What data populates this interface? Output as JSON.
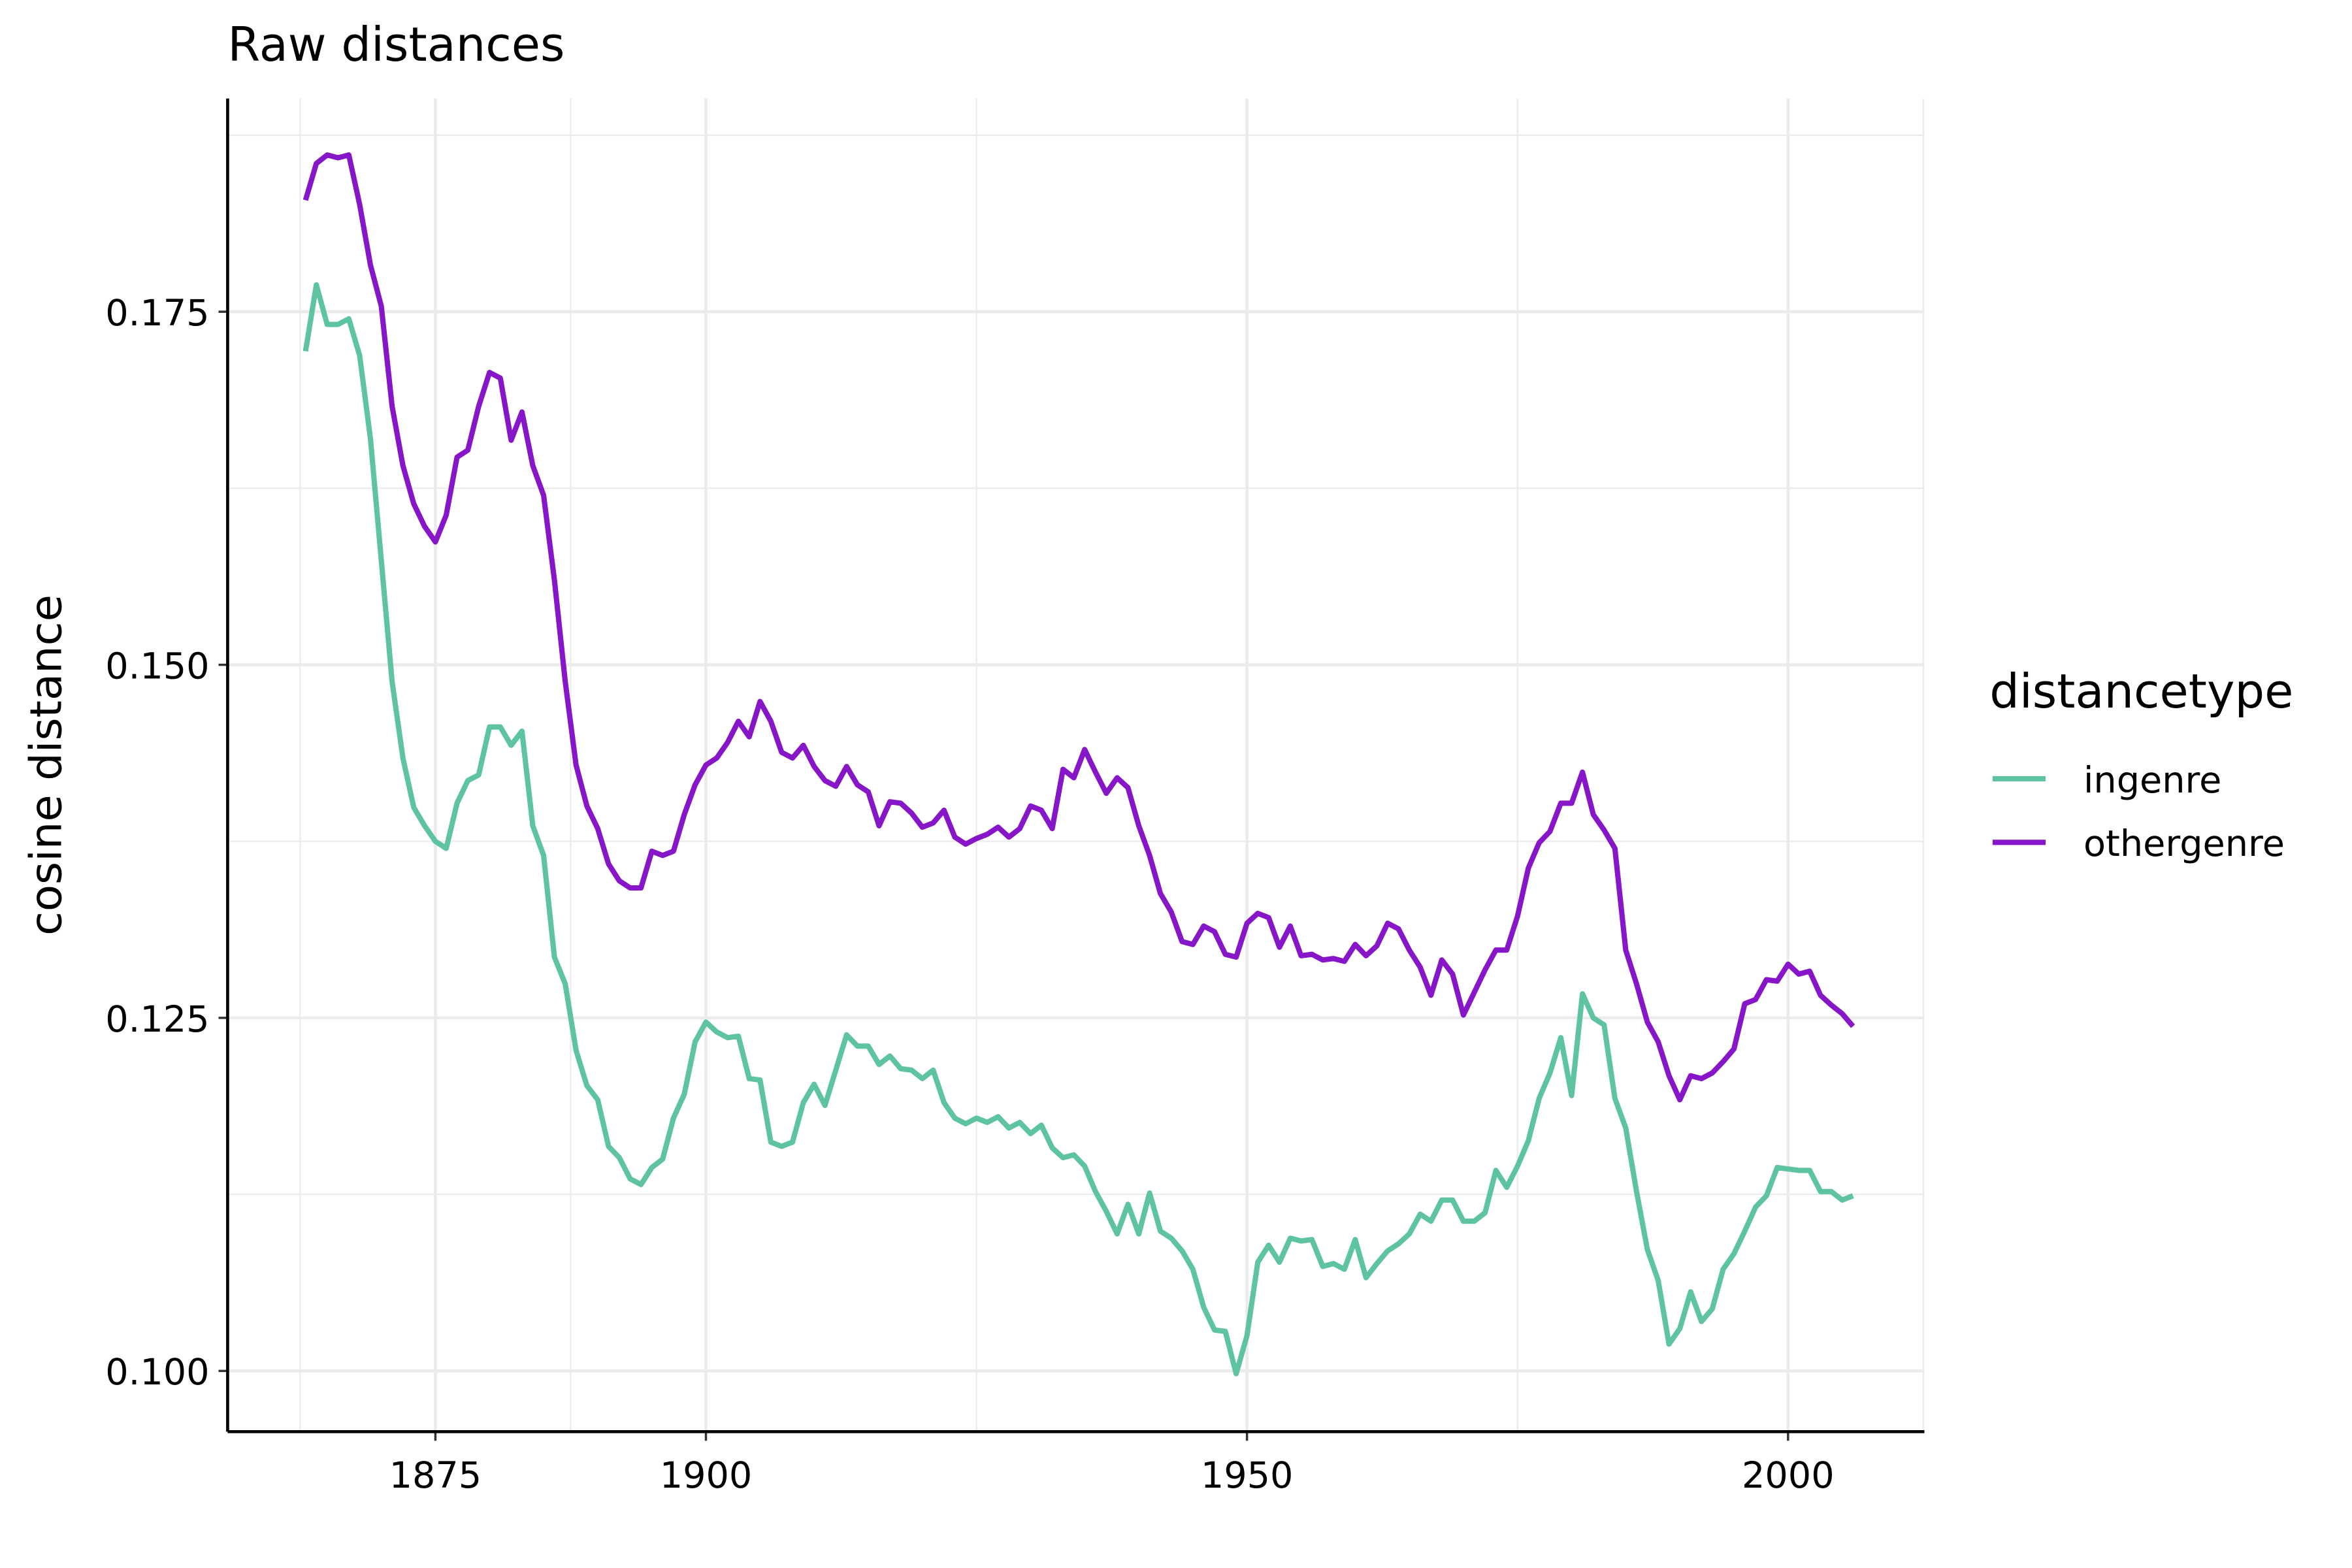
{
  "chart_data": {
    "type": "line",
    "title": "Raw distances",
    "ylabel": "cosine distance",
    "legend_title": "distancetype",
    "legend_position": "right",
    "grid": true,
    "x": [
      1863,
      1864,
      1865,
      1866,
      1867,
      1868,
      1869,
      1870,
      1871,
      1872,
      1873,
      1874,
      1875,
      1876,
      1877,
      1878,
      1879,
      1880,
      1881,
      1882,
      1883,
      1884,
      1885,
      1886,
      1887,
      1888,
      1889,
      1890,
      1891,
      1892,
      1893,
      1894,
      1895,
      1896,
      1897,
      1898,
      1899,
      1900,
      1901,
      1902,
      1903,
      1904,
      1905,
      1906,
      1907,
      1908,
      1909,
      1910,
      1911,
      1912,
      1913,
      1914,
      1915,
      1916,
      1917,
      1918,
      1919,
      1920,
      1921,
      1922,
      1923,
      1924,
      1925,
      1926,
      1927,
      1928,
      1929,
      1930,
      1931,
      1932,
      1933,
      1934,
      1935,
      1936,
      1937,
      1938,
      1939,
      1940,
      1941,
      1942,
      1943,
      1944,
      1945,
      1946,
      1947,
      1948,
      1949,
      1950,
      1951,
      1952,
      1953,
      1954,
      1955,
      1956,
      1957,
      1958,
      1959,
      1960,
      1961,
      1962,
      1963,
      1964,
      1965,
      1966,
      1967,
      1968,
      1969,
      1970,
      1971,
      1972,
      1973,
      1974,
      1975,
      1976,
      1977,
      1978,
      1979,
      1980,
      1981,
      1982,
      1983,
      1984,
      1985,
      1986,
      1987,
      1988,
      1989,
      1990,
      1991,
      1992,
      1993,
      1994,
      1995,
      1996,
      1997,
      1998,
      1999,
      2000,
      2001,
      2002,
      2003,
      2004,
      2005,
      2006
    ],
    "series": [
      {
        "name": "ingenre",
        "color": "#5ec4a0",
        "values": [
          0.1722,
          0.1769,
          0.1741,
          0.1741,
          0.1745,
          0.1719,
          0.166,
          0.1574,
          0.1488,
          0.1434,
          0.1399,
          0.1386,
          0.1375,
          0.137,
          0.1402,
          0.1418,
          0.1422,
          0.1456,
          0.1456,
          0.1443,
          0.1453,
          0.1386,
          0.1365,
          0.1293,
          0.1274,
          0.1227,
          0.1202,
          0.1192,
          0.1159,
          0.1151,
          0.1136,
          0.1132,
          0.1144,
          0.115,
          0.1179,
          0.1196,
          0.1233,
          0.1247,
          0.124,
          0.1236,
          0.1237,
          0.1207,
          0.1206,
          0.1162,
          0.1159,
          0.1162,
          0.119,
          0.1203,
          0.1188,
          0.1213,
          0.1238,
          0.123,
          0.123,
          0.1217,
          0.1223,
          0.1214,
          0.1213,
          0.1207,
          0.1213,
          0.119,
          0.1179,
          0.1175,
          0.1179,
          0.1176,
          0.118,
          0.1172,
          0.1176,
          0.1168,
          0.1174,
          0.1158,
          0.1151,
          0.1153,
          0.1145,
          0.1127,
          0.1113,
          0.1097,
          0.1118,
          0.1097,
          0.1126,
          0.1099,
          0.1094,
          0.1085,
          0.1072,
          0.1045,
          0.1029,
          0.1028,
          0.0998,
          0.1025,
          0.1077,
          0.1089,
          0.1077,
          0.1094,
          0.1092,
          0.1093,
          0.1074,
          0.1076,
          0.1072,
          0.1093,
          0.1066,
          0.1076,
          0.1085,
          0.109,
          0.1097,
          0.1111,
          0.1106,
          0.1121,
          0.1121,
          0.1106,
          0.1106,
          0.1112,
          0.1142,
          0.113,
          0.1145,
          0.1163,
          0.1193,
          0.1211,
          0.1236,
          0.1195,
          0.1267,
          0.125,
          0.1245,
          0.1193,
          0.1172,
          0.1127,
          0.1086,
          0.1064,
          0.1019,
          0.103,
          0.1056,
          0.1035,
          0.1044,
          0.1072,
          0.1083,
          0.1099,
          0.1116,
          0.1124,
          0.1144,
          0.1143,
          0.1142,
          0.1142,
          0.1127,
          0.1127,
          0.1121,
          0.1124
        ]
      },
      {
        "name": "othergenre",
        "color": "#8616c8",
        "values": [
          0.1829,
          0.1855,
          0.1861,
          0.1859,
          0.1861,
          0.1826,
          0.1783,
          0.1754,
          0.1683,
          0.1641,
          0.1614,
          0.1598,
          0.1587,
          0.1606,
          0.1647,
          0.1652,
          0.1683,
          0.1707,
          0.1703,
          0.1659,
          0.1679,
          0.1641,
          0.162,
          0.156,
          0.1488,
          0.1429,
          0.14,
          0.1384,
          0.1359,
          0.1347,
          0.1342,
          0.1342,
          0.1368,
          0.1365,
          0.1368,
          0.1394,
          0.1415,
          0.1429,
          0.1434,
          0.1445,
          0.146,
          0.1449,
          0.1474,
          0.146,
          0.1438,
          0.1434,
          0.1443,
          0.1428,
          0.1418,
          0.1414,
          0.1428,
          0.1415,
          0.141,
          0.1386,
          0.1403,
          0.1402,
          0.1395,
          0.1385,
          0.1388,
          0.1397,
          0.1378,
          0.1373,
          0.1377,
          0.138,
          0.1385,
          0.1378,
          0.1384,
          0.14,
          0.1397,
          0.1384,
          0.1426,
          0.142,
          0.144,
          0.1424,
          0.1409,
          0.142,
          0.1413,
          0.1386,
          0.1365,
          0.1338,
          0.1325,
          0.1304,
          0.1302,
          0.1315,
          0.1311,
          0.1295,
          0.1293,
          0.1317,
          0.1324,
          0.1321,
          0.13,
          0.1315,
          0.1294,
          0.1295,
          0.1291,
          0.1292,
          0.129,
          0.1302,
          0.1294,
          0.1301,
          0.1317,
          0.1313,
          0.1298,
          0.1286,
          0.1266,
          0.1291,
          0.1281,
          0.1252,
          0.1268,
          0.1284,
          0.1298,
          0.1298,
          0.1322,
          0.1356,
          0.1374,
          0.1382,
          0.1402,
          0.1402,
          0.1424,
          0.1394,
          0.1383,
          0.137,
          0.1298,
          0.1274,
          0.1247,
          0.1233,
          0.1209,
          0.1192,
          0.1209,
          0.1207,
          0.1211,
          0.1219,
          0.1228,
          0.126,
          0.1263,
          0.1277,
          0.1276,
          0.1288,
          0.1281,
          0.1283,
          0.1266,
          0.1259,
          0.1253,
          0.1244
        ]
      }
    ],
    "xlim": [
      1855.8,
      2012.6
    ],
    "xticks": [
      1875,
      1900,
      1950,
      2000
    ],
    "minor_xticks": [
      1862.5,
      1887.5,
      1925,
      1975,
      2012.5
    ],
    "ylim": [
      0.0957,
      0.1901
    ],
    "yticks": [
      {
        "value": 0.1,
        "label": "0.100"
      },
      {
        "value": 0.125,
        "label": "0.125"
      },
      {
        "value": 0.15,
        "label": "0.150"
      },
      {
        "value": 0.175,
        "label": "0.175"
      }
    ],
    "minor_yticks": [
      0.1125,
      0.1375,
      0.1625,
      0.1875
    ]
  }
}
